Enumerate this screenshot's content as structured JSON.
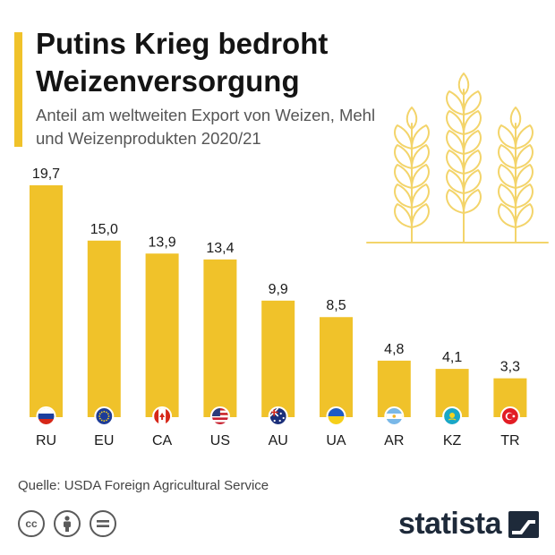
{
  "header": {
    "title": "Putins Krieg bedroht Weizenversorgung",
    "subtitle": "Anteil am weltweiten Export von Weizen, Mehl und Weizenprodukten 2020/21"
  },
  "source": "Quelle: USDA Foreign Agricultural Service",
  "brand": {
    "name": "statista"
  },
  "colors": {
    "bar": "#f0c22a",
    "accent": "#f0c22a",
    "text": "#1a1a1a",
    "wheat": "#f3d46a"
  },
  "icons": [
    "cc-icon",
    "by-icon",
    "nd-icon",
    "statista-logo-icon",
    "wheat-icon"
  ],
  "chart_data": {
    "type": "bar",
    "title": "Putins Krieg bedroht Weizenversorgung",
    "subtitle": "Anteil am weltweiten Export von Weizen, Mehl und Weizenprodukten 2020/21",
    "categories": [
      "RU",
      "EU",
      "CA",
      "US",
      "AU",
      "UA",
      "AR",
      "KZ",
      "TR"
    ],
    "values": [
      19.7,
      15.0,
      13.9,
      13.4,
      9.9,
      8.5,
      4.8,
      4.1,
      3.3
    ],
    "value_labels": [
      "19,7",
      "15,0",
      "13,9",
      "13,4",
      "9,9",
      "8,5",
      "4,8",
      "4,1",
      "3,3"
    ],
    "flags": [
      "russia-flag-icon",
      "eu-flag-icon",
      "canada-flag-icon",
      "usa-flag-icon",
      "australia-flag-icon",
      "ukraine-flag-icon",
      "argentina-flag-icon",
      "kazakhstan-flag-icon",
      "turkey-flag-icon"
    ],
    "xlabel": "",
    "ylabel": "",
    "ylim": [
      0,
      19.7
    ],
    "grid": false,
    "legend": "none"
  }
}
